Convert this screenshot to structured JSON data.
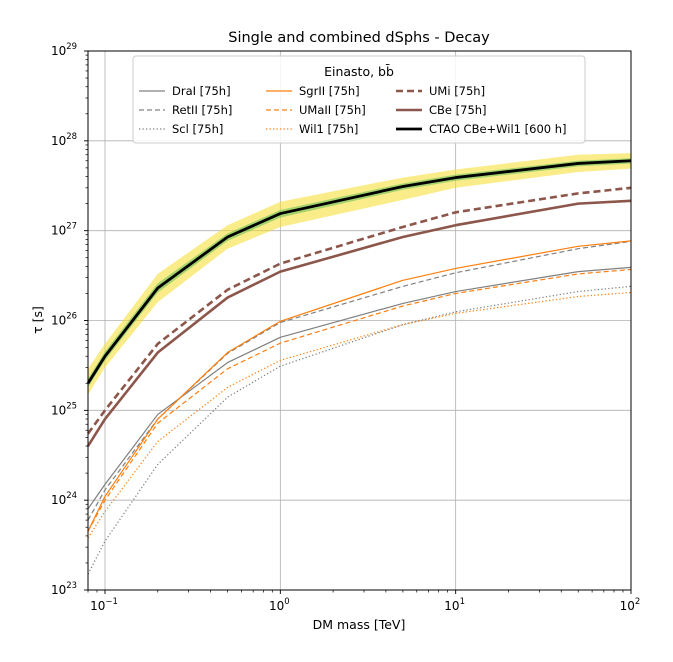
{
  "chart_data": {
    "type": "line",
    "title": "Single and combined dSphs - Decay",
    "xlabel": "DM mass [TeV]",
    "ylabel": "τ [s]",
    "xscale": "log",
    "yscale": "log",
    "xlim": [
      0.08,
      100
    ],
    "ylim": [
      1e+23,
      1e+29
    ],
    "grid": true,
    "x_ticks": [
      {
        "value": 0.1,
        "base": "10",
        "exp": "−1"
      },
      {
        "value": 1,
        "base": "10",
        "exp": "0"
      },
      {
        "value": 10,
        "base": "10",
        "exp": "1"
      },
      {
        "value": 100,
        "base": "10",
        "exp": "2"
      }
    ],
    "y_ticks": [
      {
        "value": 1e+23,
        "base": "10",
        "exp": "23"
      },
      {
        "value": 1e+24,
        "base": "10",
        "exp": "24"
      },
      {
        "value": 1e+25,
        "base": "10",
        "exp": "25"
      },
      {
        "value": 1e+26,
        "base": "10",
        "exp": "26"
      },
      {
        "value": 1e+27,
        "base": "10",
        "exp": "27"
      },
      {
        "value": 1e+28,
        "base": "10",
        "exp": "28"
      },
      {
        "value": 1e+29,
        "base": "10",
        "exp": "29"
      }
    ],
    "legend": {
      "title_main": "Einasto, b",
      "title_sub": "b̄",
      "location": "top-center",
      "columns": 3
    },
    "x": [
      0.08,
      0.1,
      0.2,
      0.5,
      1,
      5,
      10,
      50,
      100
    ],
    "series": [
      {
        "name": "DraI [75h]",
        "color": "#808080",
        "dash": "solid",
        "width": 1.2,
        "values": [
          8e+23,
          1.5e+24,
          9e+24,
          3.4e+25,
          6.5e+25,
          1.55e+26,
          2.1e+26,
          3.5e+26,
          3.9e+26
        ]
      },
      {
        "name": "RetII [75h]",
        "color": "#808080",
        "dash": "dashed",
        "width": 1.2,
        "values": [
          6e+23,
          1.3e+24,
          8e+24,
          4.3e+25,
          9.5e+25,
          2.4e+26,
          3.4e+26,
          6.3e+26,
          7.6e+26
        ]
      },
      {
        "name": "Scl [75h]",
        "color": "#808080",
        "dash": "dotted",
        "width": 1.2,
        "values": [
          1.5e+23,
          3.5e+23,
          2.5e+24,
          1.4e+25,
          3.1e+25,
          9e+25,
          1.25e+26,
          2.1e+26,
          2.4e+26
        ]
      },
      {
        "name": "SgrII [75h]",
        "color": "#ff7f0e",
        "dash": "solid",
        "width": 1.2,
        "values": [
          4.5e+23,
          1.1e+24,
          8e+24,
          4.4e+25,
          9.8e+25,
          2.8e+26,
          3.8e+26,
          6.7e+26,
          7.7e+26
        ]
      },
      {
        "name": "UMaII [75h]",
        "color": "#ff7f0e",
        "dash": "dashed",
        "width": 1.2,
        "values": [
          4.5e+23,
          1e+24,
          7.2e+24,
          2.9e+25,
          5.6e+25,
          1.45e+26,
          2e+26,
          3.3e+26,
          3.7e+26
        ]
      },
      {
        "name": "Wil1 [75h]",
        "color": "#ff7f0e",
        "dash": "dotted",
        "width": 1.2,
        "values": [
          3.8e+23,
          7.5e+23,
          4.5e+24,
          1.8e+25,
          3.6e+25,
          9e+25,
          1.2e+26,
          1.85e+26,
          2.05e+26
        ]
      },
      {
        "name": "UMi [75h]",
        "color": "#8c564b",
        "dash": "dashed",
        "width": 2.6,
        "values": [
          5.5e+24,
          1e+25,
          5.5e+25,
          2.2e+26,
          4.3e+26,
          1.1e+27,
          1.6e+27,
          2.6e+27,
          3e+27
        ]
      },
      {
        "name": "CBe [75h]",
        "color": "#8c564b",
        "dash": "solid",
        "width": 2.6,
        "values": [
          4e+24,
          8e+24,
          4.4e+25,
          1.8e+26,
          3.5e+26,
          8.5e+26,
          1.15e+27,
          2e+27,
          2.15e+27
        ]
      },
      {
        "name": "CTAO CBe+Wil1 [600 h]",
        "color": "#000000",
        "dash": "solid",
        "width": 2.8,
        "values": [
          2e+25,
          4e+25,
          2.3e+26,
          8.5e+26,
          1.55e+27,
          3.1e+27,
          3.9e+27,
          5.6e+27,
          6e+27
        ]
      }
    ],
    "bands": [
      {
        "color": "#f5dc28",
        "opacity": 0.55,
        "lower": [
          1.5e+25,
          3e+25,
          1.6e+26,
          6.3e+26,
          1.1e+27,
          2.2e+27,
          3e+27,
          4.5e+27,
          4.9e+27
        ],
        "upper": [
          2.9e+25,
          5.5e+25,
          3.3e+26,
          1.15e+27,
          2.1e+27,
          3.9e+27,
          4.8e+27,
          7e+27,
          7.3e+27
        ]
      },
      {
        "color": "#3cb44b",
        "opacity": 0.45,
        "lower": [
          1.8e+25,
          3.6e+25,
          2.05e+26,
          7.7e+26,
          1.4e+27,
          2.85e+27,
          3.6e+27,
          5.2e+27,
          5.6e+27
        ],
        "upper": [
          2.25e+25,
          4.5e+25,
          2.6e+26,
          9.3e+26,
          1.7e+27,
          3.35e+27,
          4.2e+27,
          6e+27,
          6.4e+27
        ]
      }
    ]
  }
}
